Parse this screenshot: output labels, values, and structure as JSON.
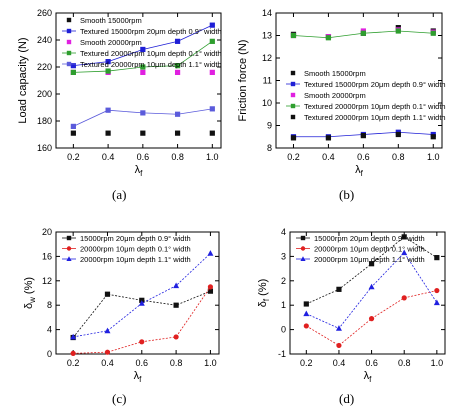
{
  "chart_data": [
    {
      "panel": "(a)",
      "type": "line",
      "xlabel": "λf",
      "ylabel": "Load capacity (N)",
      "xlim": [
        0.1,
        1.05
      ],
      "ylim": [
        160,
        260
      ],
      "xticks": [
        0.2,
        0.4,
        0.6,
        0.8,
        1.0
      ],
      "yticks": [
        160,
        180,
        200,
        220,
        240,
        260
      ],
      "legend_position": "top-left",
      "series": [
        {
          "name": "Smooth 15000rpm",
          "color": "#111111",
          "marker": "square",
          "line": false,
          "x": [
            0.2,
            0.4,
            0.6,
            0.8,
            1.0
          ],
          "values": [
            171,
            171,
            171,
            171,
            171
          ]
        },
        {
          "name": "Textured 15000rpm 20μm depth 0.9° width",
          "color": "#1f1fd6",
          "marker": "square",
          "line": true,
          "x": [
            0.2,
            0.4,
            0.6,
            0.8,
            1.0
          ],
          "values": [
            221,
            224,
            233,
            239,
            251
          ]
        },
        {
          "name": "Smooth 20000rpm",
          "color": "#e020e0",
          "marker": "square",
          "line": false,
          "x": [
            0.2,
            0.4,
            0.6,
            0.8,
            1.0
          ],
          "values": [
            216,
            216,
            216,
            216,
            216
          ]
        },
        {
          "name": "Textured 20000rpm 10μm depth 0.1° width",
          "color": "#2e9e2e",
          "marker": "square",
          "line": true,
          "x": [
            0.2,
            0.4,
            0.6,
            0.8,
            1.0
          ],
          "values": [
            216,
            217,
            220,
            221,
            239
          ]
        },
        {
          "name": "Textured 20000rpm 10μm depth 1.1° width",
          "color": "#5b5bdb",
          "marker": "square",
          "line": true,
          "x": [
            0.2,
            0.4,
            0.6,
            0.8,
            1.0
          ],
          "values": [
            176,
            188,
            186,
            185,
            189
          ]
        }
      ]
    },
    {
      "panel": "(b)",
      "type": "line",
      "xlabel": "λf",
      "ylabel": "Friction force (N)",
      "xlim": [
        0.1,
        1.05
      ],
      "ylim": [
        8,
        14
      ],
      "xticks": [
        0.2,
        0.4,
        0.6,
        0.8,
        1.0
      ],
      "yticks": [
        8,
        9,
        10,
        11,
        12,
        13,
        14
      ],
      "legend_position": "center",
      "series": [
        {
          "name": "Smooth 15000rpm",
          "color": "#111111",
          "marker": "square",
          "line": false,
          "x": [
            0.2,
            0.4,
            0.6,
            0.8,
            1.0
          ],
          "values": [
            13.05,
            12.95,
            13.1,
            13.35,
            13.2
          ]
        },
        {
          "name": "Textured 15000rpm 20μm depth 0.9° width",
          "color": "#1f1fd6",
          "marker": "square",
          "line": true,
          "x": [
            0.2,
            0.4,
            0.6,
            0.8,
            1.0
          ],
          "values": [
            8.5,
            8.5,
            8.6,
            8.7,
            8.6
          ]
        },
        {
          "name": "Smooth 20000rpm",
          "color": "#e020e0",
          "marker": "square",
          "line": false,
          "x": [
            0.2,
            0.4,
            0.6,
            0.8,
            1.0
          ],
          "values": [
            13.0,
            12.95,
            13.2,
            13.25,
            13.15
          ]
        },
        {
          "name": "Textured 20000rpm 10μm depth 0.1° width",
          "color": "#2e9e2e",
          "marker": "square",
          "line": true,
          "x": [
            0.2,
            0.4,
            0.6,
            0.8,
            1.0
          ],
          "values": [
            13.0,
            12.9,
            13.1,
            13.2,
            13.1
          ]
        },
        {
          "name": "Textured 20000rpm 10μm depth 1.1° width",
          "color": "#111111",
          "marker": "square",
          "line": false,
          "x": [
            0.2,
            0.4,
            0.6,
            0.8,
            1.0
          ],
          "values": [
            8.45,
            8.45,
            8.55,
            8.6,
            8.5
          ]
        }
      ]
    },
    {
      "panel": "(c)",
      "type": "line",
      "xlabel": "λf",
      "ylabel": "δw (%)",
      "xlim": [
        0.1,
        1.05
      ],
      "ylim": [
        0,
        20
      ],
      "xticks": [
        0.2,
        0.4,
        0.6,
        0.8,
        1.0
      ],
      "yticks": [
        0,
        4,
        8,
        12,
        16,
        20
      ],
      "legend_position": "top-left",
      "series": [
        {
          "name": "15000rpm 20μm depth 0.9° width",
          "color": "#111111",
          "marker": "square",
          "line": true,
          "x": [
            0.2,
            0.4,
            0.6,
            0.8,
            1.0
          ],
          "values": [
            2.7,
            9.8,
            8.8,
            8.0,
            10.3
          ]
        },
        {
          "name": "20000rpm 10μm depth 0.1° width",
          "color": "#e02020",
          "marker": "circle",
          "line": true,
          "x": [
            0.2,
            0.4,
            0.6,
            0.8,
            1.0
          ],
          "values": [
            0.1,
            0.3,
            2.0,
            2.8,
            11.0
          ]
        },
        {
          "name": "20000rpm 10μm depth 1.1° width",
          "color": "#2020e0",
          "marker": "triangle",
          "line": true,
          "x": [
            0.2,
            0.4,
            0.6,
            0.8,
            1.0
          ],
          "values": [
            2.8,
            3.8,
            8.3,
            11.2,
            16.5
          ]
        }
      ]
    },
    {
      "panel": "(d)",
      "type": "line",
      "xlabel": "λf",
      "ylabel": "δf (%)",
      "xlim": [
        0.1,
        1.05
      ],
      "ylim": [
        -1,
        4
      ],
      "xticks": [
        0.2,
        0.4,
        0.6,
        0.8,
        1.0
      ],
      "yticks": [
        -1,
        0,
        1,
        2,
        3,
        4
      ],
      "legend_position": "top-left",
      "series": [
        {
          "name": "15000rpm 20μm depth 0.9° width",
          "color": "#111111",
          "marker": "square",
          "line": true,
          "x": [
            0.2,
            0.4,
            0.6,
            0.8,
            1.0
          ],
          "values": [
            1.05,
            1.65,
            2.7,
            3.8,
            2.95
          ]
        },
        {
          "name": "20000rpm 10μm depth 0.1° width",
          "color": "#e02020",
          "marker": "circle",
          "line": true,
          "x": [
            0.2,
            0.4,
            0.6,
            0.8,
            1.0
          ],
          "values": [
            0.15,
            -0.65,
            0.45,
            1.3,
            1.6
          ]
        },
        {
          "name": "20000rpm 10μm depth 1.1° width",
          "color": "#2020e0",
          "marker": "triangle",
          "line": true,
          "x": [
            0.2,
            0.4,
            0.6,
            0.8,
            1.0
          ],
          "values": [
            0.65,
            0.05,
            1.75,
            3.15,
            1.1
          ]
        }
      ]
    }
  ]
}
